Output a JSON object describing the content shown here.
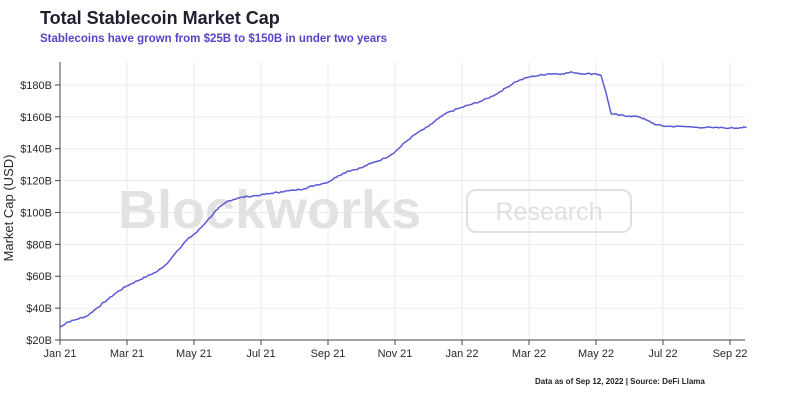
{
  "header": {
    "title": "Total Stablecoin Market Cap",
    "subtitle": "Stablecoins have grown from $25B to $150B in under two years"
  },
  "footer": {
    "source": "Data as of Sep 12, 2022 | Source: DeFi Llama"
  },
  "watermark": {
    "brand": "Blockworks",
    "tag": "Research"
  },
  "chart_data": {
    "type": "line",
    "title": "Total Stablecoin Market Cap",
    "ylabel": "Market Cap (USD)",
    "xlabel": "",
    "line_color": "#5b5bd6",
    "grid": true,
    "ylim": [
      20,
      190
    ],
    "y_ticks": [
      {
        "value": 20,
        "label": "$20B"
      },
      {
        "value": 40,
        "label": "$40B"
      },
      {
        "value": 60,
        "label": "$60B"
      },
      {
        "value": 80,
        "label": "$80B"
      },
      {
        "value": 100,
        "label": "$100B"
      },
      {
        "value": 120,
        "label": "$120B"
      },
      {
        "value": 140,
        "label": "$140B"
      },
      {
        "value": 160,
        "label": "$160B"
      },
      {
        "value": 180,
        "label": "$180B"
      }
    ],
    "x_ticks": [
      {
        "month": 0,
        "label": "Jan 21"
      },
      {
        "month": 2,
        "label": "Mar 21"
      },
      {
        "month": 4,
        "label": "May 21"
      },
      {
        "month": 6,
        "label": "Jul 21"
      },
      {
        "month": 8,
        "label": "Sep 21"
      },
      {
        "month": 10,
        "label": "Nov 21"
      },
      {
        "month": 12,
        "label": "Jan 22"
      },
      {
        "month": 14,
        "label": "Mar 22"
      },
      {
        "month": 16,
        "label": "May 22"
      },
      {
        "month": 18,
        "label": "Jul 22"
      },
      {
        "month": 20,
        "label": "Sep 22"
      }
    ],
    "series": [
      {
        "points": [
          [
            0.0,
            28
          ],
          [
            0.2,
            31
          ],
          [
            0.5,
            33
          ],
          [
            0.8,
            35
          ],
          [
            1.1,
            40
          ],
          [
            1.4,
            45
          ],
          [
            1.7,
            50
          ],
          [
            2.0,
            54
          ],
          [
            2.3,
            57
          ],
          [
            2.6,
            60
          ],
          [
            2.9,
            63
          ],
          [
            3.2,
            68
          ],
          [
            3.5,
            76
          ],
          [
            3.8,
            83
          ],
          [
            4.1,
            88
          ],
          [
            4.4,
            95
          ],
          [
            4.7,
            102
          ],
          [
            5.0,
            107
          ],
          [
            5.3,
            109
          ],
          [
            5.6,
            110
          ],
          [
            6.0,
            111
          ],
          [
            6.3,
            112
          ],
          [
            6.6,
            113
          ],
          [
            7.0,
            114
          ],
          [
            7.3,
            115
          ],
          [
            7.6,
            117
          ],
          [
            8.0,
            119
          ],
          [
            8.3,
            123
          ],
          [
            8.6,
            126
          ],
          [
            9.0,
            128
          ],
          [
            9.3,
            131
          ],
          [
            9.7,
            134
          ],
          [
            10.0,
            138
          ],
          [
            10.3,
            144
          ],
          [
            10.6,
            149
          ],
          [
            11.0,
            154
          ],
          [
            11.3,
            159
          ],
          [
            11.6,
            163
          ],
          [
            12.0,
            166
          ],
          [
            12.3,
            168
          ],
          [
            12.6,
            170
          ],
          [
            13.0,
            174
          ],
          [
            13.3,
            178
          ],
          [
            13.6,
            182
          ],
          [
            14.0,
            185
          ],
          [
            14.3,
            186
          ],
          [
            14.6,
            187
          ],
          [
            15.0,
            187
          ],
          [
            15.3,
            188
          ],
          [
            15.6,
            187
          ],
          [
            16.0,
            187
          ],
          [
            16.15,
            186
          ],
          [
            16.3,
            175
          ],
          [
            16.45,
            162
          ],
          [
            16.7,
            161
          ],
          [
            17.0,
            160.5
          ],
          [
            17.3,
            160
          ],
          [
            17.5,
            158
          ],
          [
            17.8,
            155
          ],
          [
            18.1,
            154
          ],
          [
            18.5,
            154
          ],
          [
            19.0,
            153.5
          ],
          [
            19.5,
            153.2
          ],
          [
            20.0,
            153
          ],
          [
            20.3,
            153.2
          ],
          [
            20.5,
            153.3
          ]
        ]
      }
    ]
  }
}
